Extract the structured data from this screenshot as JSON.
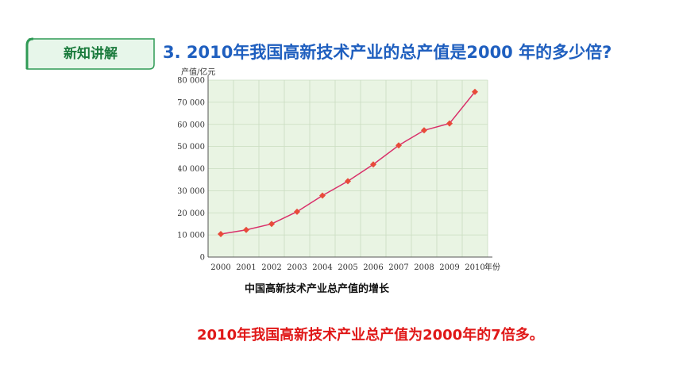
{
  "badge": {
    "label": "新知讲解"
  },
  "question": {
    "text": "3. 2010年我国高新技术产业的总产值是2000 年的多少倍?"
  },
  "chart_data": {
    "type": "line",
    "title": "中国高新技术产业总产值的增长",
    "ylabel": "产值/亿元",
    "xlabel": "年份",
    "x": [
      "2000",
      "2001",
      "2002",
      "2003",
      "2004",
      "2005",
      "2006",
      "2007",
      "2008",
      "2009",
      "2010"
    ],
    "values": [
      10400,
      12300,
      15000,
      20500,
      27800,
      34300,
      41900,
      50500,
      57300,
      60400,
      74700
    ],
    "ylim": [
      0,
      80000
    ],
    "yticks": [
      "0",
      "10 000",
      "20 000",
      "30 000",
      "40 000",
      "50 000",
      "60 000",
      "70 000",
      "80 000"
    ],
    "grid": true,
    "colors": {
      "line": "#d9306a",
      "marker": "#e84a3a",
      "plot_bg": "#e9f4e3",
      "grid": "#c9dcc0"
    }
  },
  "answer": {
    "text": "2010年我国高新技术产业总产值为2000年的7倍多。"
  }
}
